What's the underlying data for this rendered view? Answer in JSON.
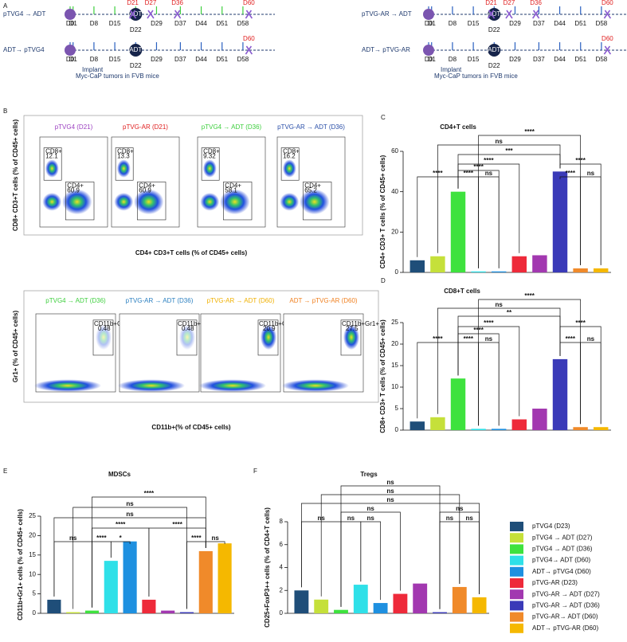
{
  "timelines": {
    "panel": "A",
    "blocks": [
      {
        "rows": [
          {
            "label": "pTVG4 → ADT",
            "center": "ADT",
            "days": [
              "D0",
              "D1",
              "D8",
              "D15",
              "D22",
              "D29",
              "D37",
              "D44",
              "D51",
              "D58"
            ],
            "harvest": [
              "D21",
              "D27",
              "D36",
              "D60"
            ]
          },
          {
            "label": "ADT→ pTVG4",
            "center": "ADT",
            "days": [
              "D0",
              "D1",
              "D8",
              "D15",
              "D22",
              "D29",
              "D37",
              "D44",
              "D51",
              "D58"
            ],
            "harvest": [
              "D60"
            ]
          }
        ],
        "note": [
          "Implant",
          "Myc-CaP tumors in FVB mice"
        ]
      },
      {
        "rows": [
          {
            "label": "pTVG-AR → ADT",
            "center": "ADT",
            "days": [
              "D0",
              "D1",
              "D8",
              "D15",
              "D22",
              "D29",
              "D37",
              "D44",
              "D51",
              "D58"
            ],
            "harvest": [
              "D21",
              "D27",
              "D36",
              "D60"
            ]
          },
          {
            "label": "ADT→ pTVG-AR",
            "center": "ADT",
            "days": [
              "D0",
              "D1",
              "D8",
              "D15",
              "D22",
              "D29",
              "D37",
              "D44",
              "D51",
              "D58"
            ],
            "harvest": [
              "D60"
            ]
          }
        ],
        "note": [
          "Implant",
          "Myc-CaP tumors in FVB mice"
        ]
      }
    ]
  },
  "flow": {
    "panel": "B",
    "rows": [
      {
        "ylabel": "CD8+ CD3+T cells (% of CD45+ cells)",
        "xlabel": "CD4+ CD3+T cells  (% of CD45+ cells)",
        "plots": [
          {
            "title": "pTVG4 (D21)",
            "color": "#9b3fc0",
            "gates": [
              {
                "label": "CD8+",
                "value": 12.1
              },
              {
                "label": "CD4+",
                "value": 60.9
              }
            ]
          },
          {
            "title": "pTVG-AR (D21)",
            "color": "#e02020",
            "gates": [
              {
                "label": "CD8+",
                "value": 13.3
              },
              {
                "label": "CD4+",
                "value": 60.9
              }
            ]
          },
          {
            "title": "pTVG4 → ADT (D36)",
            "color": "#3ecf3e",
            "gates": [
              {
                "label": "CD8+",
                "value": 9.32
              },
              {
                "label": "CD4+",
                "value": 58.1
              }
            ]
          },
          {
            "title": "pTVG-AR → ADT (D36)",
            "color": "#2a4fa8",
            "gates": [
              {
                "label": "CD8+",
                "value": 16.2
              },
              {
                "label": "CD4+",
                "value": 65.2
              }
            ]
          }
        ]
      },
      {
        "ylabel": "Gr1+ (% of CD45+ cells)",
        "xlabel": "CD11b+(% of CD45+ cells)",
        "plots": [
          {
            "title": "pTVG4 → ADT (D36)",
            "color": "#3ecf3e",
            "gates": [
              {
                "label": "CD11b+Gr1+",
                "value": 0.48
              }
            ]
          },
          {
            "title": "pTVG-AR → ADT (D36)",
            "color": "#2a7fc0",
            "gates": [
              {
                "label": "CD11b+Gr1+",
                "value": 0.48
              }
            ]
          },
          {
            "title": "pTVG-AR → ADT (D60)",
            "color": "#f0b000",
            "gates": [
              {
                "label": "CD11b+Gr1+",
                "value": 20.9
              }
            ]
          },
          {
            "title": "ADT → pTVG-AR (D60)",
            "color": "#f08020",
            "gates": [
              {
                "label": "CD11b+Gr1+",
                "value": 27.5
              }
            ]
          }
        ]
      }
    ]
  },
  "legend": {
    "labels": [
      "pTVG4 (D23)",
      "pTVG4  → ADT (D27)",
      "pTVG4  → ADT (D36)",
      "pTVG4→ ADT (D60)",
      "ADT→ pTVG4 (D60)",
      "pTVG-AR (D23)",
      "pTVG-AR  → ADT (D27)",
      "pTVG-AR → ADT (D36)",
      "pTVG-AR→ ADT (D60)",
      "ADT→ pTVG-AR (D60)"
    ],
    "colors": [
      "#1f4e79",
      "#c5e03a",
      "#3ee23e",
      "#2fe0e8",
      "#1e90e0",
      "#ee2a3a",
      "#a238b0",
      "#3a3ab8",
      "#f08a2a",
      "#f5b800"
    ]
  },
  "chart_data": [
    {
      "type": "bar",
      "panel": "C",
      "title": "CD4+T cells",
      "ylabel": "CD4+ CD3+ T cells (% of CD45+ cells)",
      "values": [
        6,
        8,
        40,
        0.5,
        0.5,
        8,
        8.5,
        50,
        2,
        2
      ],
      "ylim": [
        0,
        60
      ],
      "yticks": [
        0,
        20,
        40,
        60
      ],
      "significance": [
        "****",
        "ns",
        "***",
        "****",
        "****",
        "****",
        "****",
        "ns",
        "****",
        "****",
        "ns"
      ]
    },
    {
      "type": "bar",
      "panel": "D",
      "title": "CD8+T cells",
      "ylabel": "CD8+ CD3+ T cells (% of CD45+ cells)",
      "values": [
        2,
        3,
        12,
        0.3,
        0.3,
        2.5,
        5,
        16.5,
        0.7,
        0.7
      ],
      "ylim": [
        0,
        25
      ],
      "yticks": [
        0,
        5,
        10,
        15,
        20,
        25
      ],
      "significance": [
        "****",
        "ns",
        "**",
        "****",
        "****",
        "****",
        "****",
        "ns",
        "****",
        "****",
        "ns"
      ]
    },
    {
      "type": "bar",
      "panel": "E",
      "title": "MDSCs",
      "ylabel": "CD11b+Gr1+ cells (% of CD45+ cells)",
      "values": [
        3.5,
        0.3,
        0.7,
        13.5,
        18.5,
        3.5,
        0.7,
        0.3,
        16,
        18
      ],
      "ylim": [
        0,
        25
      ],
      "yticks": [
        0,
        5,
        10,
        15,
        20,
        25
      ],
      "significance": [
        "****",
        "ns",
        "ns",
        "****",
        "ns",
        "****",
        "*",
        "****",
        "****",
        "ns"
      ]
    },
    {
      "type": "bar",
      "panel": "F",
      "title": "Tregs",
      "ylabel": "CD25+FoxP3++ cells (% of CD4+T cells)",
      "values": [
        2,
        1.2,
        0.3,
        2.5,
        0.9,
        1.7,
        2.6,
        0.1,
        2.3,
        1.4
      ],
      "ylim": [
        0,
        8
      ],
      "yticks": [
        0,
        2,
        4,
        6,
        8
      ],
      "significance": [
        "ns",
        "ns",
        "ns",
        "ns",
        "ns",
        "ns",
        "ns",
        "ns",
        "ns",
        "ns"
      ]
    }
  ]
}
